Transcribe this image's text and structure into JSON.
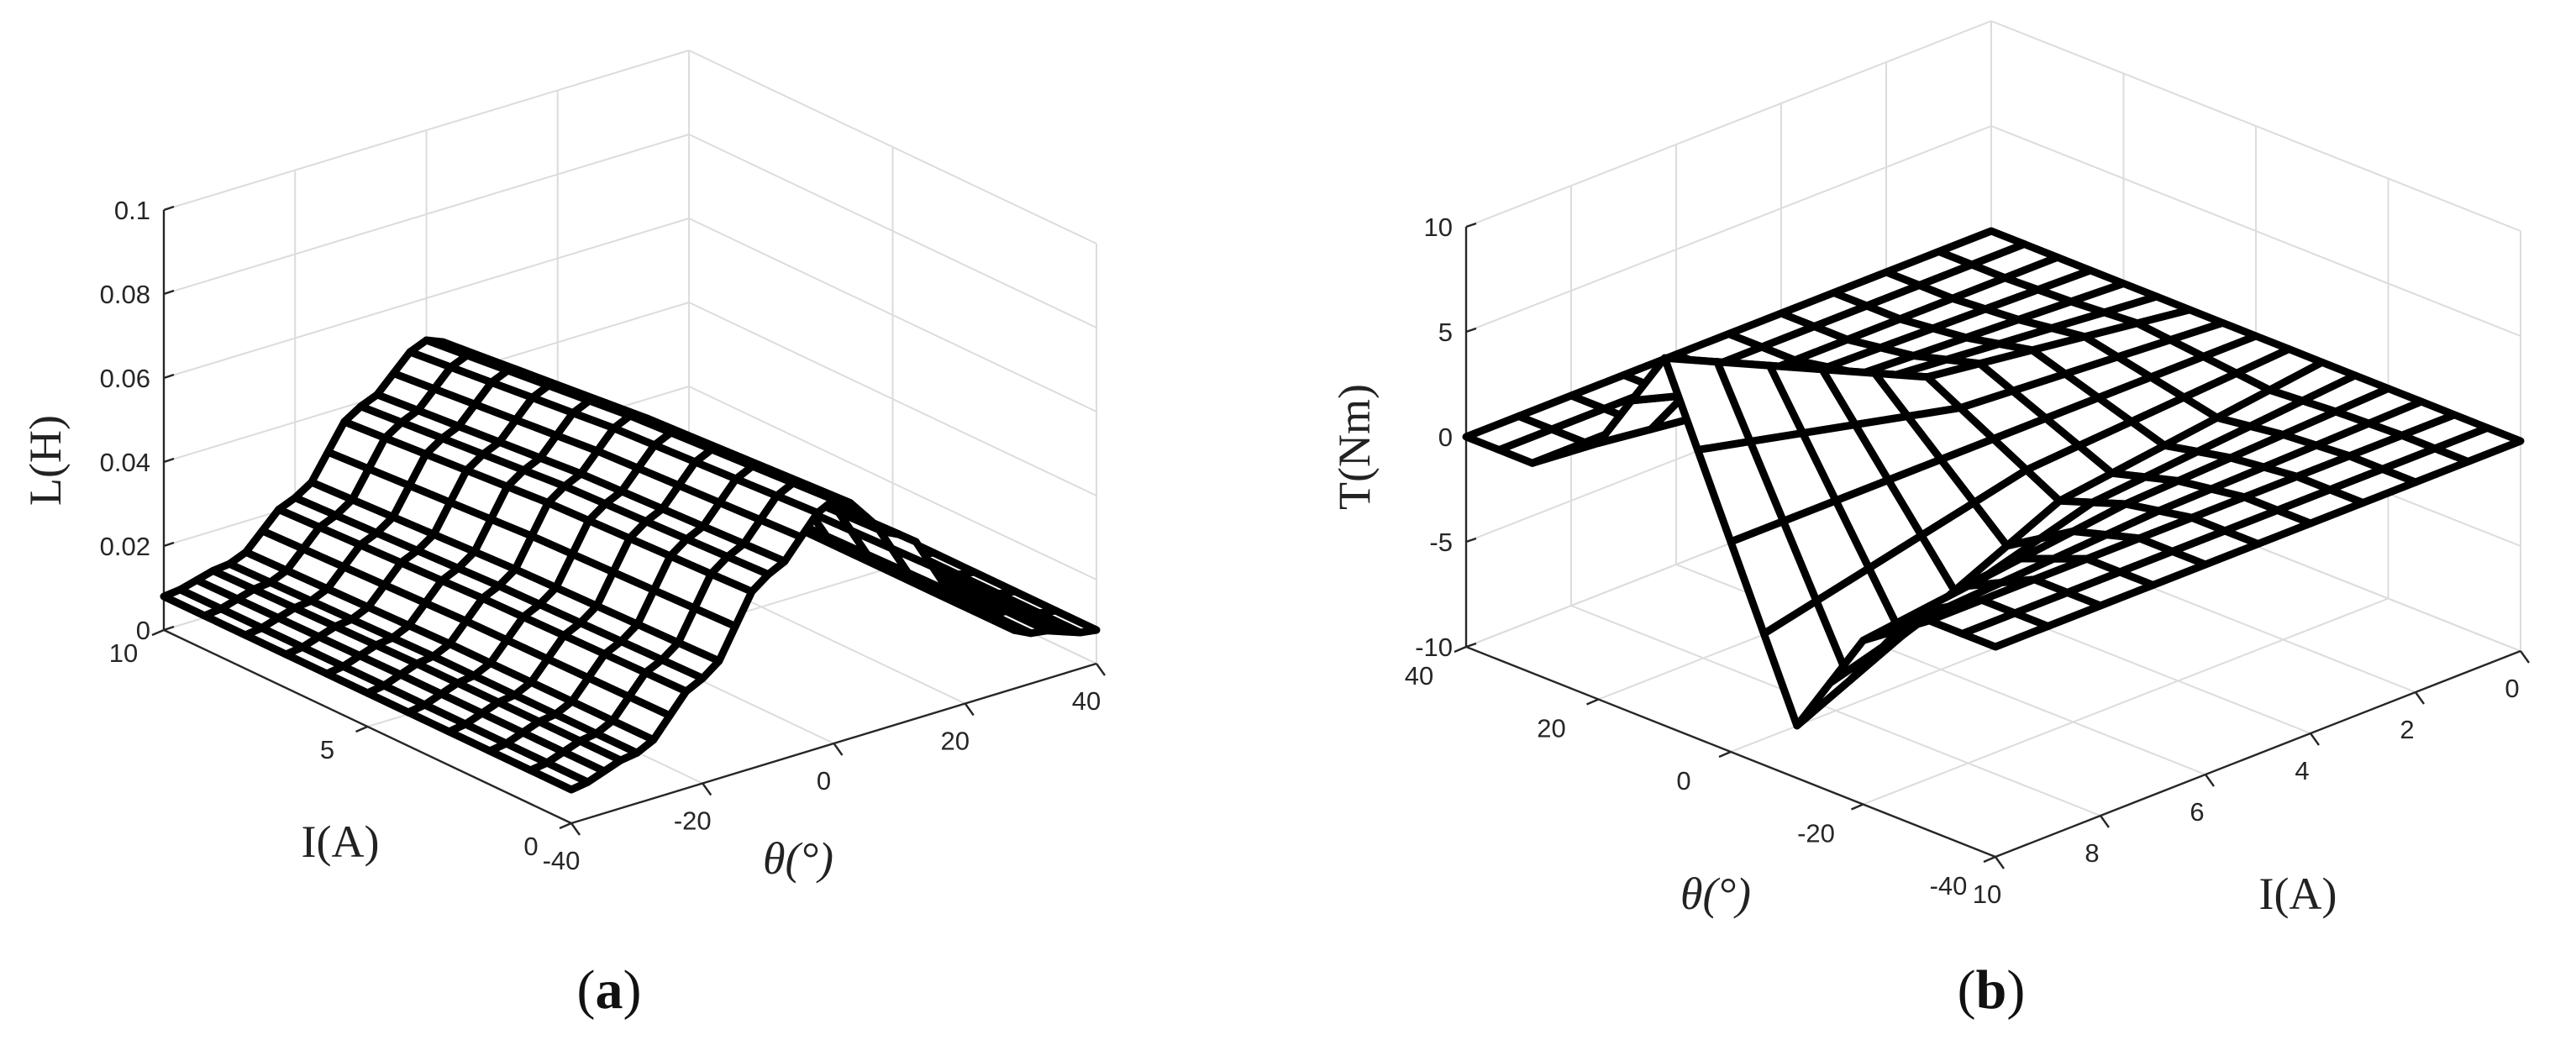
{
  "chart_data": [
    {
      "type": "surface",
      "panel_label": "a",
      "zlabel": "L(H)",
      "xlabel": "θ(°)",
      "ylabel": "I(A)",
      "x_ticks": [
        "-40",
        "-20",
        "0",
        "20",
        "40"
      ],
      "y_ticks": [
        "0",
        "5",
        "10"
      ],
      "z_ticks": [
        "0",
        "0.02",
        "0.04",
        "0.06",
        "0.08",
        "0.1"
      ],
      "xlim": [
        -40,
        40
      ],
      "ylim": [
        0,
        10
      ],
      "zlim": [
        0,
        0.1
      ],
      "grid": true,
      "mesh": {
        "theta_points": 33,
        "current_points": 11
      },
      "surface_samples": {
        "theta": [
          -40,
          -30,
          -20,
          -10,
          0,
          10,
          20,
          30,
          40
        ],
        "current": [
          0,
          5,
          10
        ],
        "L": [
          [
            0.008,
            0.012,
            0.025,
            0.045,
            0.058,
            0.045,
            0.025,
            0.012,
            0.008
          ],
          [
            0.008,
            0.012,
            0.024,
            0.043,
            0.055,
            0.043,
            0.024,
            0.012,
            0.008
          ],
          [
            0.008,
            0.011,
            0.022,
            0.039,
            0.05,
            0.039,
            0.022,
            0.011,
            0.008
          ]
        ]
      }
    },
    {
      "type": "surface",
      "panel_label": "b",
      "zlabel": "T(Nm)",
      "xlabel": "I(A)",
      "ylabel": "θ(°)",
      "x_ticks": [
        "0",
        "2",
        "4",
        "6",
        "8",
        "10"
      ],
      "y_ticks": [
        "-40",
        "-20",
        "0",
        "20",
        "40"
      ],
      "z_ticks": [
        "-10",
        "-5",
        "0",
        "5",
        "10"
      ],
      "xlim": [
        0,
        10
      ],
      "ylim": [
        -40,
        40
      ],
      "zlim": [
        -10,
        10
      ],
      "grid": true,
      "mesh": {
        "theta_points": 17,
        "current_points": 11
      },
      "surface_samples": {
        "theta": [
          -40,
          -30,
          -20,
          -10,
          0,
          10,
          20,
          30,
          40
        ],
        "current": [
          0,
          5,
          10
        ],
        "T": [
          [
            0,
            0,
            0,
            0,
            0,
            0,
            0,
            0,
            0
          ],
          [
            0,
            0,
            -0.6,
            -1.7,
            0,
            1.7,
            0.6,
            0,
            0
          ],
          [
            0,
            0,
            -2.2,
            -7.5,
            0,
            7.5,
            2.2,
            0,
            0
          ]
        ]
      }
    }
  ]
}
